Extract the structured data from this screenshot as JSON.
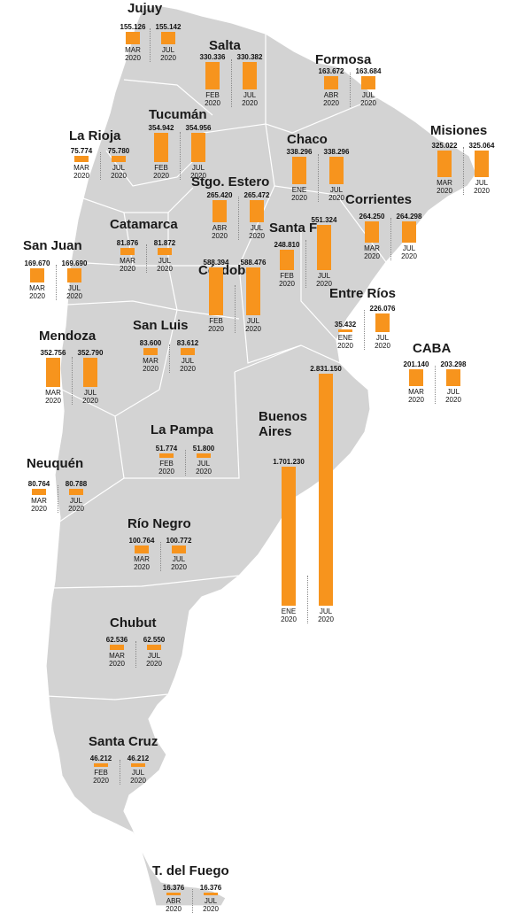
{
  "chart_data": {
    "type": "bar",
    "bar_color": "#f7941d",
    "map_color": "#d3d3d3",
    "border_color": "#ffffff",
    "provinces": [
      {
        "name": "Jujuy",
        "values": [
          {
            "value": 155.126,
            "label": "155.126",
            "month": "MAR",
            "year": "2020"
          },
          {
            "value": 155.142,
            "label": "155.142",
            "month": "JUL",
            "year": "2020"
          }
        ]
      },
      {
        "name": "Salta",
        "values": [
          {
            "value": 330.336,
            "label": "330.336",
            "month": "FEB",
            "year": "2020"
          },
          {
            "value": 330.382,
            "label": "330.382",
            "month": "JUL",
            "year": "2020"
          }
        ]
      },
      {
        "name": "Formosa",
        "values": [
          {
            "value": 163.672,
            "label": "163.672",
            "month": "ABR",
            "year": "2020"
          },
          {
            "value": 163.684,
            "label": "163.684",
            "month": "JUL",
            "year": "2020"
          }
        ]
      },
      {
        "name": "Misiones",
        "values": [
          {
            "value": 325.022,
            "label": "325.022",
            "month": "MAR",
            "year": "2020"
          },
          {
            "value": 325.064,
            "label": "325.064",
            "month": "JUL",
            "year": "2020"
          }
        ]
      },
      {
        "name": "La Rioja",
        "values": [
          {
            "value": 75.774,
            "label": "75.774",
            "month": "MAR",
            "year": "2020"
          },
          {
            "value": 75.78,
            "label": "75.780",
            "month": "JUL",
            "year": "2020"
          }
        ]
      },
      {
        "name": "Tucumán",
        "values": [
          {
            "value": 354.942,
            "label": "354.942",
            "month": "FEB",
            "year": "2020"
          },
          {
            "value": 354.956,
            "label": "354.956",
            "month": "JUL",
            "year": "2020"
          }
        ]
      },
      {
        "name": "Chaco",
        "values": [
          {
            "value": 338.296,
            "label": "338.296",
            "month": "ENE",
            "year": "2020"
          },
          {
            "value": 338.296,
            "label": "338.296",
            "month": "JUL",
            "year": "2020"
          }
        ]
      },
      {
        "name": "Stgo. Estero",
        "values": [
          {
            "value": 265.42,
            "label": "265.420",
            "month": "ABR",
            "year": "2020"
          },
          {
            "value": 265.472,
            "label": "265.472",
            "month": "JUL",
            "year": "2020"
          }
        ]
      },
      {
        "name": "Corrientes",
        "values": [
          {
            "value": 264.25,
            "label": "264.250",
            "month": "MAR",
            "year": "2020"
          },
          {
            "value": 264.298,
            "label": "264.298",
            "month": "JUL",
            "year": "2020"
          }
        ]
      },
      {
        "name": "Catamarca",
        "values": [
          {
            "value": 81.876,
            "label": "81.876",
            "month": "MAR",
            "year": "2020"
          },
          {
            "value": 81.872,
            "label": "81.872",
            "month": "JUL",
            "year": "2020"
          }
        ]
      },
      {
        "name": "Santa Fe",
        "values": [
          {
            "value": 248.81,
            "label": "248.810",
            "month": "FEB",
            "year": "2020"
          },
          {
            "value": 551.324,
            "label": "551.324",
            "month": "JUL",
            "year": "2020"
          }
        ]
      },
      {
        "name": "San Juan",
        "values": [
          {
            "value": 169.67,
            "label": "169.670",
            "month": "MAR",
            "year": "2020"
          },
          {
            "value": 169.69,
            "label": "169.690",
            "month": "JUL",
            "year": "2020"
          }
        ]
      },
      {
        "name": "Córdoba",
        "values": [
          {
            "value": 588.394,
            "label": "588.394",
            "month": "FEB",
            "year": "2020"
          },
          {
            "value": 588.476,
            "label": "588.476",
            "month": "JUL",
            "year": "2020"
          }
        ]
      },
      {
        "name": "Entre Ríos",
        "values": [
          {
            "value": 35.432,
            "label": "35.432",
            "month": "ENE",
            "year": "2020"
          },
          {
            "value": 226.076,
            "label": "226.076",
            "month": "JUL",
            "year": "2020"
          }
        ]
      },
      {
        "name": "San Luis",
        "values": [
          {
            "value": 83.6,
            "label": "83.600",
            "month": "MAR",
            "year": "2020"
          },
          {
            "value": 83.612,
            "label": "83.612",
            "month": "JUL",
            "year": "2020"
          }
        ]
      },
      {
        "name": "Mendoza",
        "values": [
          {
            "value": 352.756,
            "label": "352.756",
            "month": "MAR",
            "year": "2020"
          },
          {
            "value": 352.79,
            "label": "352.790",
            "month": "JUL",
            "year": "2020"
          }
        ]
      },
      {
        "name": "CABA",
        "values": [
          {
            "value": 201.14,
            "label": "201.140",
            "month": "MAR",
            "year": "2020"
          },
          {
            "value": 203.298,
            "label": "203.298",
            "month": "JUL",
            "year": "2020"
          }
        ]
      },
      {
        "name": "Buenos Aires",
        "values": [
          {
            "value": 1701.23,
            "label": "1.701.230",
            "month": "ENE",
            "year": "2020"
          },
          {
            "value": 2831.15,
            "label": "2.831.150",
            "month": "JUL",
            "year": "2020"
          }
        ]
      },
      {
        "name": "La Pampa",
        "values": [
          {
            "value": 51.774,
            "label": "51.774",
            "month": "FEB",
            "year": "2020"
          },
          {
            "value": 51.8,
            "label": "51.800",
            "month": "JUL",
            "year": "2020"
          }
        ]
      },
      {
        "name": "Neuquén",
        "values": [
          {
            "value": 80.764,
            "label": "80.764",
            "month": "MAR",
            "year": "2020"
          },
          {
            "value": 80.788,
            "label": "80.788",
            "month": "JUL",
            "year": "2020"
          }
        ]
      },
      {
        "name": "Río Negro",
        "values": [
          {
            "value": 100.764,
            "label": "100.764",
            "month": "MAR",
            "year": "2020"
          },
          {
            "value": 100.772,
            "label": "100.772",
            "month": "JUL",
            "year": "2020"
          }
        ]
      },
      {
        "name": "Chubut",
        "values": [
          {
            "value": 62.536,
            "label": "62.536",
            "month": "MAR",
            "year": "2020"
          },
          {
            "value": 62.55,
            "label": "62.550",
            "month": "JUL",
            "year": "2020"
          }
        ]
      },
      {
        "name": "Santa Cruz",
        "values": [
          {
            "value": 46.212,
            "label": "46.212",
            "month": "FEB",
            "year": "2020"
          },
          {
            "value": 46.212,
            "label": "46.212",
            "month": "JUL",
            "year": "2020"
          }
        ]
      },
      {
        "name": "T. del Fuego",
        "values": [
          {
            "value": 16.376,
            "label": "16.376",
            "month": "ABR",
            "year": "2020"
          },
          {
            "value": 16.376,
            "label": "16.376",
            "month": "JUL",
            "year": "2020"
          }
        ]
      }
    ]
  }
}
